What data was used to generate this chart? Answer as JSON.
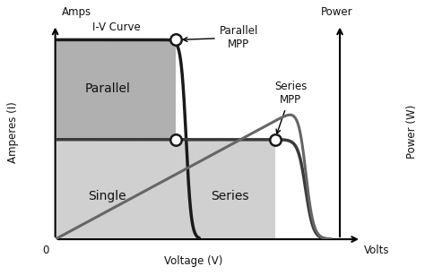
{
  "fig_width": 4.74,
  "fig_height": 3.07,
  "dpi": 100,
  "color_parallel_rect": "#b0b0b0",
  "color_single_rect": "#d0d0d0",
  "color_series_rect": "#d0d0d0",
  "color_iv_parallel": "#1a1a1a",
  "color_iv_single": "#3a3a3a",
  "color_pv": "#666666",
  "bg_color": "#ffffff",
  "text_color": "#111111",
  "label_parallel": "Parallel",
  "label_single": "Single",
  "label_series": "Series",
  "label_iv": "I-V Curve",
  "label_parallel_mpp": "Parallel\nMPP",
  "label_series_mpp": "Series\nMPP",
  "label_amps": "Amps",
  "label_amperes": "Amperes (I)",
  "label_power": "Power",
  "label_power_w": "Power (W)",
  "label_voltage": "Voltage (V)",
  "label_volts": "Volts",
  "label_zero": "0"
}
